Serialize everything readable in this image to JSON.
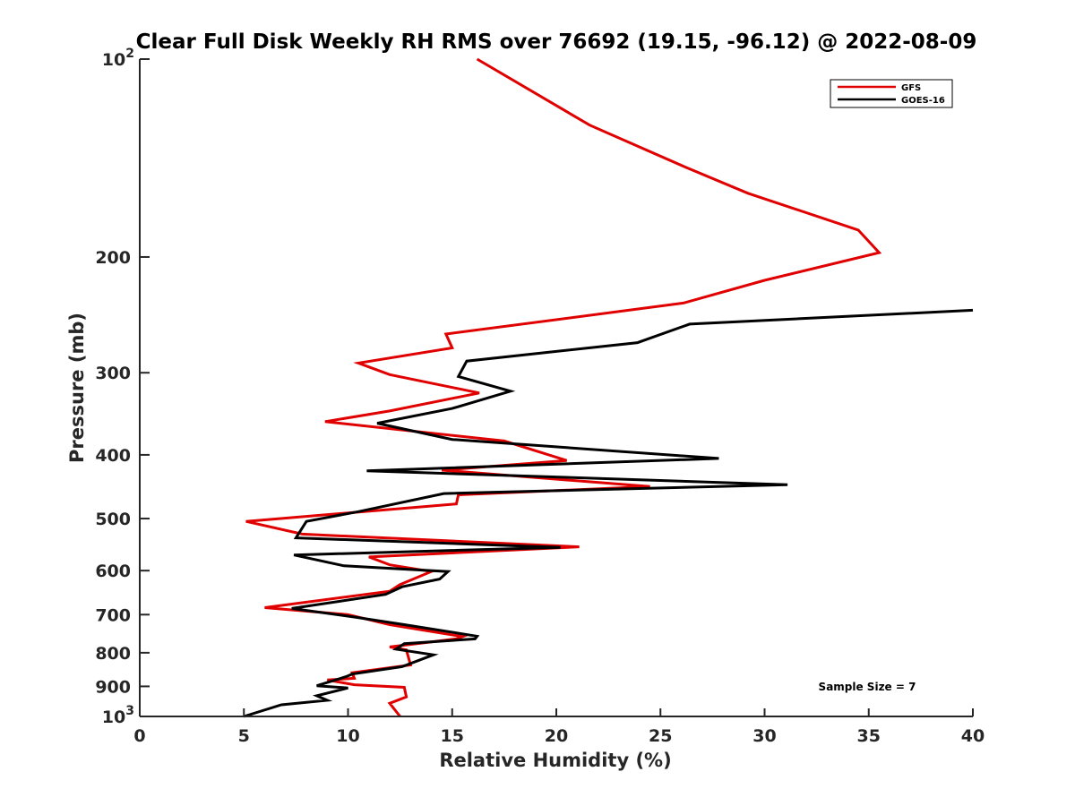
{
  "chart_data": {
    "type": "line",
    "title": "Clear Full Disk Weekly RH RMS over 76692 (19.15, -96.12) @ 2022-08-09",
    "xlabel": "Relative Humidity (%)",
    "ylabel": "Pressure (mb)",
    "xlim": [
      0,
      40
    ],
    "ylim": [
      100,
      1000
    ],
    "yscale": "log",
    "y_reversed": true,
    "x_ticks": [
      {
        "value": 0,
        "label": "0"
      },
      {
        "value": 5,
        "label": "5"
      },
      {
        "value": 10,
        "label": "10"
      },
      {
        "value": 15,
        "label": "15"
      },
      {
        "value": 20,
        "label": "20"
      },
      {
        "value": 25,
        "label": "25"
      },
      {
        "value": 30,
        "label": "30"
      },
      {
        "value": 35,
        "label": "35"
      },
      {
        "value": 40,
        "label": "40"
      }
    ],
    "y_ticks": [
      {
        "value": 100,
        "base": "10",
        "exp": "2"
      },
      {
        "value": 200,
        "label": "200"
      },
      {
        "value": 300,
        "label": "300"
      },
      {
        "value": 400,
        "label": "400"
      },
      {
        "value": 500,
        "label": "500"
      },
      {
        "value": 600,
        "label": "600"
      },
      {
        "value": 700,
        "label": "700"
      },
      {
        "value": 800,
        "label": "800"
      },
      {
        "value": 900,
        "label": "900"
      },
      {
        "value": 1000,
        "base": "10",
        "exp": "3"
      }
    ],
    "legend_position": "top-right",
    "annotation": "Sample Size = 7",
    "series": [
      {
        "name": "GFS",
        "color": "#e00000",
        "points": [
          [
            16.2,
            100
          ],
          [
            21.6,
            126
          ],
          [
            26.2,
            146
          ],
          [
            29.2,
            160
          ],
          [
            34.5,
            182
          ],
          [
            35.5,
            197
          ],
          [
            30.0,
            217
          ],
          [
            26.1,
            235
          ],
          [
            14.7,
            262
          ],
          [
            15.0,
            275
          ],
          [
            10.5,
            290
          ],
          [
            12.0,
            302
          ],
          [
            16.3,
            322
          ],
          [
            12.0,
            343
          ],
          [
            8.9,
            356
          ],
          [
            17.5,
            381
          ],
          [
            20.5,
            408
          ],
          [
            14.5,
            422
          ],
          [
            24.5,
            447
          ],
          [
            15.3,
            460
          ],
          [
            15.2,
            475
          ],
          [
            5.1,
            505
          ],
          [
            7.8,
            528
          ],
          [
            21.1,
            552
          ],
          [
            11.0,
            572
          ],
          [
            12.0,
            588
          ],
          [
            14.0,
            602
          ],
          [
            12.5,
            630
          ],
          [
            12.0,
            645
          ],
          [
            6.0,
            683
          ],
          [
            10.0,
            700
          ],
          [
            12.0,
            725
          ],
          [
            15.5,
            756
          ],
          [
            15.2,
            762
          ],
          [
            12.0,
            784
          ],
          [
            12.8,
            792
          ],
          [
            13.0,
            835
          ],
          [
            10.2,
            858
          ],
          [
            10.3,
            875
          ],
          [
            9.0,
            880
          ],
          [
            10.3,
            895
          ],
          [
            12.7,
            903
          ],
          [
            12.8,
            934
          ],
          [
            12.0,
            955
          ],
          [
            12.5,
            1000
          ]
        ]
      },
      {
        "name": "GOES-16",
        "color": "#000000",
        "points": [
          [
            40.0,
            241
          ],
          [
            26.4,
            253
          ],
          [
            23.9,
            270
          ],
          [
            15.7,
            288
          ],
          [
            15.3,
            304
          ],
          [
            17.8,
            320
          ],
          [
            15.0,
            340
          ],
          [
            11.4,
            358
          ],
          [
            15.0,
            379
          ],
          [
            27.8,
            405
          ],
          [
            10.9,
            423
          ],
          [
            31.1,
            444
          ],
          [
            14.6,
            458
          ],
          [
            10.5,
            488
          ],
          [
            8.0,
            505
          ],
          [
            7.5,
            535
          ],
          [
            20.2,
            553
          ],
          [
            7.4,
            568
          ],
          [
            9.8,
            590
          ],
          [
            14.8,
            602
          ],
          [
            14.4,
            618
          ],
          [
            12.6,
            635
          ],
          [
            11.8,
            652
          ],
          [
            7.3,
            685
          ],
          [
            10.3,
            706
          ],
          [
            12.7,
            725
          ],
          [
            16.2,
            755
          ],
          [
            16.1,
            762
          ],
          [
            12.7,
            775
          ],
          [
            12.3,
            790
          ],
          [
            14.1,
            806
          ],
          [
            12.6,
            840
          ],
          [
            10.2,
            862
          ],
          [
            9.9,
            870
          ],
          [
            8.5,
            898
          ],
          [
            10.0,
            905
          ],
          [
            8.5,
            930
          ],
          [
            9.0,
            945
          ],
          [
            6.8,
            960
          ],
          [
            5.0,
            1000
          ]
        ]
      }
    ]
  }
}
